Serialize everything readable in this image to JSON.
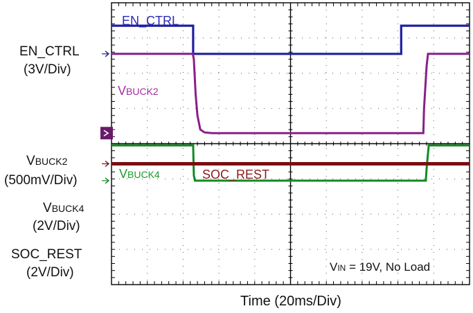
{
  "chart_data": {
    "type": "line",
    "title": "",
    "xlabel": "Time (20ms/Div)",
    "x_divisions": 10,
    "y_divisions": 8,
    "xlim": [
      0,
      10
    ],
    "ylim": [
      0,
      8
    ],
    "grid": true,
    "series": [
      {
        "name": "EN_CTRL",
        "scale": "3V/Div",
        "color": "#1f1f9e",
        "label_color": "#2a2ab5",
        "baseline_div": 6.55,
        "points": [
          [
            0,
            7.35
          ],
          [
            2.28,
            7.35
          ],
          [
            2.28,
            6.55
          ],
          [
            8.09,
            6.55
          ],
          [
            8.09,
            7.35
          ],
          [
            10,
            7.35
          ]
        ]
      },
      {
        "name": "VBUCK2",
        "scale": "500mV/Div",
        "color": "#8a1e8a",
        "label_color": "#a22ca2",
        "baseline_div": 4.3,
        "points": [
          [
            0,
            6.55
          ],
          [
            2.27,
            6.55
          ],
          [
            2.3,
            6.4
          ],
          [
            2.35,
            5.4
          ],
          [
            2.4,
            4.8
          ],
          [
            2.48,
            4.4
          ],
          [
            2.6,
            4.32
          ],
          [
            2.8,
            4.3
          ],
          [
            8.71,
            4.3
          ],
          [
            8.73,
            5.0
          ],
          [
            8.8,
            6.2
          ],
          [
            8.84,
            6.55
          ],
          [
            10,
            6.55
          ]
        ]
      },
      {
        "name": "VBUCK4",
        "scale": "2V/Div",
        "color": "#108a22",
        "label_color": "#1a9a2c",
        "baseline_div": 2.95,
        "points": [
          [
            0,
            3.95
          ],
          [
            2.28,
            3.95
          ],
          [
            2.3,
            3.1
          ],
          [
            2.33,
            2.95
          ],
          [
            8.78,
            2.95
          ],
          [
            8.8,
            3.3
          ],
          [
            8.86,
            3.95
          ],
          [
            10,
            3.95
          ]
        ]
      },
      {
        "name": "SOC_REST",
        "scale": "2V/Div",
        "color": "#7a0e12",
        "label_color": "#8c1a1a",
        "baseline_div": 3.43,
        "points": [
          [
            0,
            3.43
          ],
          [
            10,
            3.43
          ]
        ]
      }
    ],
    "annotations": [
      {
        "text_main": "V",
        "text_sub": "IN",
        "text_rest": " = 19V, No Load"
      }
    ]
  },
  "labels": {
    "en_ctrl_name": "EN_CTRL",
    "en_ctrl_scale": "(3V/Div)",
    "vbuck2_main": "V",
    "vbuck2_sub": "BUCK2",
    "vbuck2_scale": "(500mV/Div)",
    "vbuck4_main": "V",
    "vbuck4_sub": "BUCK4",
    "vbuck4_scale": "(2V/Div)",
    "soc_rest_name": "SOC_REST",
    "soc_rest_scale": "(2V/Div)",
    "trace_en_ctrl": "EN_CTRL",
    "trace_vbuck2_main": "V",
    "trace_vbuck2_sub": "BUCK2",
    "trace_vbuck4_main": "V",
    "trace_vbuck4_sub": "BUCK4",
    "trace_soc_rest": "SOC_REST",
    "vin_main": "V",
    "vin_sub": "IN",
    "vin_rest": " = 19V, No Load"
  }
}
